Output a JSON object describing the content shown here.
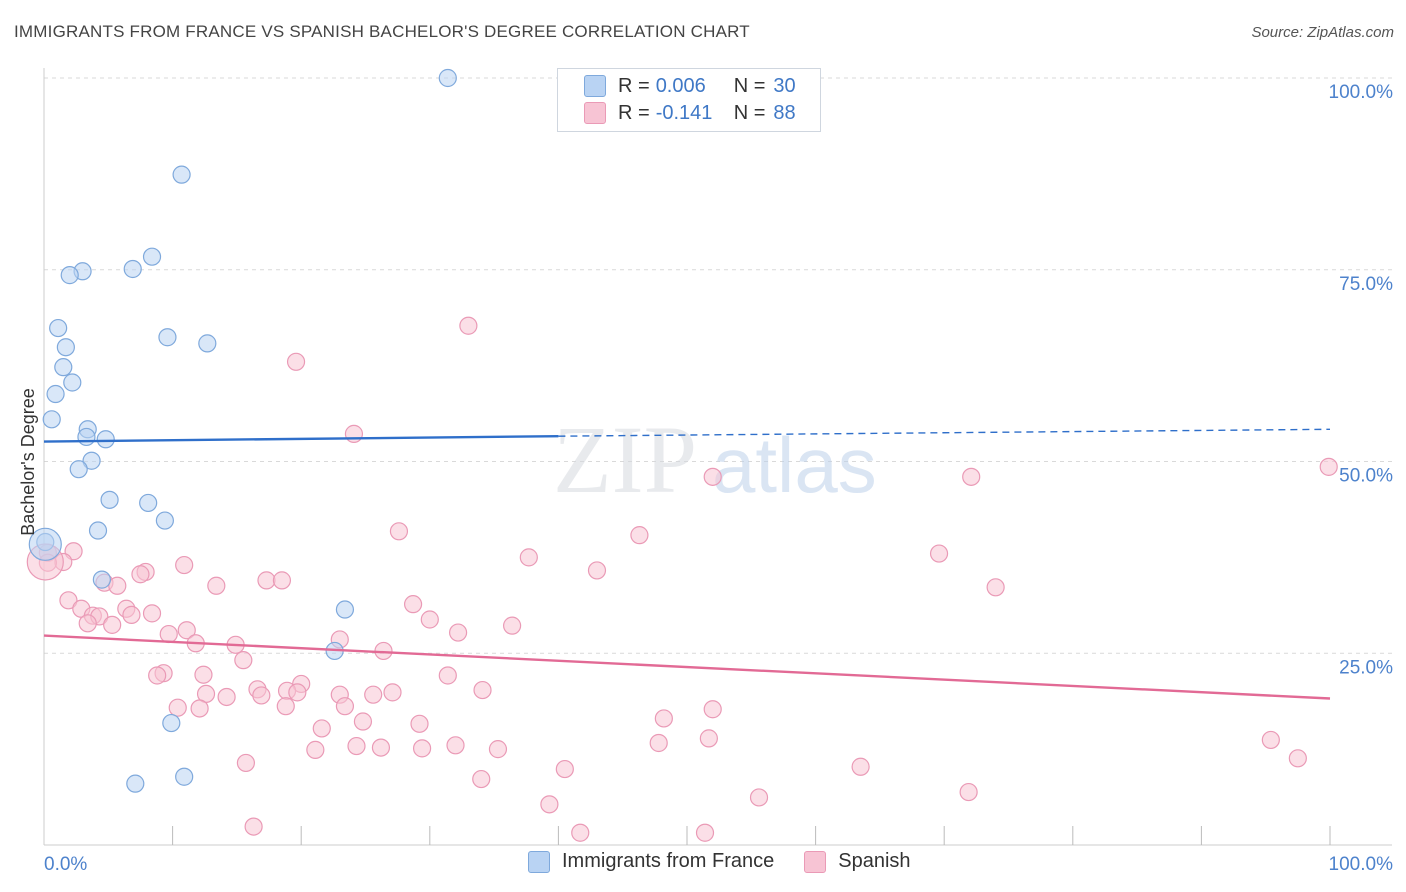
{
  "header": {
    "title": "IMMIGRANTS FROM FRANCE VS SPANISH BACHELOR'S DEGREE CORRELATION CHART",
    "source": "Source: ZipAtlas.com"
  },
  "watermark": {
    "zip": "ZIP",
    "atlas": "atlas"
  },
  "legend_top": [
    {
      "r_label": "R =",
      "r_value": "0.006",
      "n_label": "N =",
      "n_value": "30"
    },
    {
      "r_label": "R =",
      "r_value": "-0.141",
      "n_label": "N =",
      "n_value": "88"
    }
  ],
  "colors": {
    "france_fill": "#b9d3f3",
    "france_stroke": "#7fa9dc",
    "france_line": "#2f6fca",
    "spanish_fill": "#f7c4d4",
    "spanish_stroke": "#ea9ab6",
    "spanish_line": "#e26a95",
    "tick_label": "#4d82cc",
    "grid": "#d9d9d9"
  },
  "chart_data": {
    "type": "scatter",
    "title": "IMMIGRANTS FROM FRANCE VS SPANISH BACHELOR'S DEGREE CORRELATION CHART",
    "xlabel": "",
    "ylabel": "Bachelor's Degree",
    "xlim": [
      0,
      100
    ],
    "ylim": [
      0,
      100
    ],
    "x_tick_labels": [
      "0.0%",
      "100.0%"
    ],
    "y_ticks": [
      25,
      50,
      75,
      100
    ],
    "y_tick_labels": [
      "25.0%",
      "50.0%",
      "75.0%",
      "100.0%"
    ],
    "grid": true,
    "legend_position": "bottom",
    "series": [
      {
        "name": "Immigrants from France",
        "r": 0.006,
        "n": 30,
        "trend": {
          "x": [
            0,
            40,
            100
          ],
          "y": [
            52.6,
            53.3,
            54.2
          ],
          "solid_until": 40
        },
        "points": [
          [
            31.4,
            100
          ],
          [
            10.7,
            87.4
          ],
          [
            8.4,
            76.7
          ],
          [
            6.9,
            75.1
          ],
          [
            3.0,
            74.8
          ],
          [
            2.0,
            74.3
          ],
          [
            1.1,
            67.4
          ],
          [
            9.6,
            66.2
          ],
          [
            12.7,
            65.4
          ],
          [
            1.7,
            64.9
          ],
          [
            1.5,
            62.3
          ],
          [
            2.2,
            60.3
          ],
          [
            0.9,
            58.8
          ],
          [
            0.6,
            55.5
          ],
          [
            3.4,
            54.2
          ],
          [
            3.3,
            53.2
          ],
          [
            4.8,
            52.9
          ],
          [
            3.7,
            50.1
          ],
          [
            2.7,
            49.0
          ],
          [
            5.1,
            45.0
          ],
          [
            8.1,
            44.6
          ],
          [
            9.4,
            42.3
          ],
          [
            4.2,
            41.0
          ],
          [
            0.1,
            39.5
          ],
          [
            4.5,
            34.6
          ],
          [
            23.4,
            30.7
          ],
          [
            22.6,
            25.3
          ],
          [
            9.9,
            15.9
          ],
          [
            10.9,
            8.9
          ],
          [
            7.1,
            8.0
          ]
        ]
      },
      {
        "name": "Spanish",
        "r": -0.141,
        "n": 88,
        "trend": {
          "x": [
            0,
            100
          ],
          "y": [
            27.3,
            19.1
          ]
        },
        "points": [
          [
            33.0,
            67.7
          ],
          [
            19.6,
            63.0
          ],
          [
            24.1,
            53.6
          ],
          [
            99.9,
            49.3
          ],
          [
            52.0,
            48.0
          ],
          [
            72.1,
            48.0
          ],
          [
            27.6,
            40.9
          ],
          [
            46.3,
            40.4
          ],
          [
            0.3,
            38.1
          ],
          [
            2.3,
            38.3
          ],
          [
            69.6,
            38.0
          ],
          [
            37.7,
            37.5
          ],
          [
            1.5,
            36.9
          ],
          [
            0.3,
            36.8
          ],
          [
            10.9,
            36.5
          ],
          [
            43.0,
            35.8
          ],
          [
            7.9,
            35.6
          ],
          [
            7.5,
            35.3
          ],
          [
            17.3,
            34.5
          ],
          [
            18.5,
            34.5
          ],
          [
            4.7,
            34.2
          ],
          [
            5.7,
            33.8
          ],
          [
            13.4,
            33.8
          ],
          [
            74.0,
            33.6
          ],
          [
            1.9,
            31.9
          ],
          [
            28.7,
            31.4
          ],
          [
            2.9,
            30.8
          ],
          [
            6.4,
            30.8
          ],
          [
            8.4,
            30.2
          ],
          [
            6.8,
            30.0
          ],
          [
            3.8,
            29.9
          ],
          [
            4.3,
            29.8
          ],
          [
            30.0,
            29.4
          ],
          [
            3.4,
            28.9
          ],
          [
            5.3,
            28.7
          ],
          [
            36.4,
            28.6
          ],
          [
            11.1,
            28.0
          ],
          [
            32.2,
            27.7
          ],
          [
            9.7,
            27.5
          ],
          [
            23.0,
            26.8
          ],
          [
            11.8,
            26.3
          ],
          [
            14.9,
            26.1
          ],
          [
            26.4,
            25.3
          ],
          [
            15.5,
            24.1
          ],
          [
            9.3,
            22.4
          ],
          [
            8.8,
            22.1
          ],
          [
            12.4,
            22.2
          ],
          [
            31.4,
            22.1
          ],
          [
            20.0,
            21.0
          ],
          [
            16.6,
            20.3
          ],
          [
            18.9,
            20.1
          ],
          [
            34.1,
            20.2
          ],
          [
            12.6,
            19.7
          ],
          [
            23.0,
            19.6
          ],
          [
            27.1,
            19.9
          ],
          [
            25.6,
            19.6
          ],
          [
            16.9,
            19.5
          ],
          [
            19.7,
            19.9
          ],
          [
            14.2,
            19.3
          ],
          [
            10.4,
            17.9
          ],
          [
            12.1,
            17.8
          ],
          [
            18.8,
            18.1
          ],
          [
            23.4,
            18.1
          ],
          [
            52.0,
            17.7
          ],
          [
            48.2,
            16.5
          ],
          [
            24.8,
            16.1
          ],
          [
            29.2,
            15.8
          ],
          [
            21.6,
            15.2
          ],
          [
            51.7,
            13.9
          ],
          [
            95.4,
            13.7
          ],
          [
            47.8,
            13.3
          ],
          [
            32.0,
            13.0
          ],
          [
            24.3,
            12.9
          ],
          [
            26.2,
            12.7
          ],
          [
            29.4,
            12.6
          ],
          [
            35.3,
            12.5
          ],
          [
            21.1,
            12.4
          ],
          [
            97.5,
            11.3
          ],
          [
            15.7,
            10.7
          ],
          [
            40.5,
            9.9
          ],
          [
            63.5,
            10.2
          ],
          [
            34.0,
            8.6
          ],
          [
            71.9,
            6.9
          ],
          [
            55.6,
            6.2
          ],
          [
            39.3,
            5.3
          ],
          [
            16.3,
            2.4
          ],
          [
            41.7,
            1.6
          ],
          [
            51.4,
            1.6
          ]
        ]
      }
    ]
  },
  "legend_bottom": [
    {
      "label": "Immigrants from France"
    },
    {
      "label": "Spanish"
    }
  ]
}
